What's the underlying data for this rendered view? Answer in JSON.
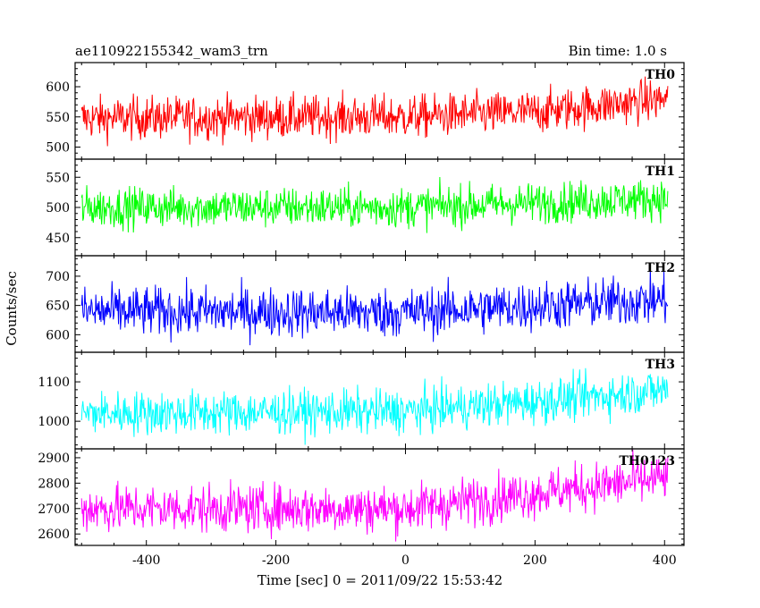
{
  "header": {
    "title": "ae110922155342_wam3_trn",
    "bin_time": "Bin time: 1.0 s"
  },
  "axes": {
    "ylabel": "Counts/sec",
    "xlabel": "Time [sec] 0 = 2011/09/22 15:53:42"
  },
  "chart_data": {
    "type": "line",
    "title": "ae110922155342_wam3_trn",
    "xlabel": "Time [sec] 0 = 2011/09/22 15:53:42",
    "ylabel": "Counts/sec",
    "xlim": [
      -510,
      430
    ],
    "x_ticks": [
      -400,
      -200,
      0,
      200,
      400
    ],
    "x_range": [
      -500,
      405
    ],
    "bin_time_s": 1.0,
    "grid": false,
    "panels": [
      {
        "name": "TH0",
        "color": "#ff0000",
        "ylim": [
          480,
          640
        ],
        "y_ticks": [
          500,
          550,
          600
        ],
        "trend": [
          [
            -500,
            548
          ],
          [
            0,
            550
          ],
          [
            200,
            558
          ],
          [
            405,
            580
          ]
        ],
        "amplitude": 32
      },
      {
        "name": "TH1",
        "color": "#00ff00",
        "ylim": [
          420,
          580
        ],
        "y_ticks": [
          450,
          500,
          550
        ],
        "trend": [
          [
            -500,
            500
          ],
          [
            0,
            500
          ],
          [
            405,
            515
          ]
        ],
        "amplitude": 30
      },
      {
        "name": "TH2",
        "color": "#0000ff",
        "ylim": [
          570,
          735
        ],
        "y_ticks": [
          600,
          650,
          700
        ],
        "trend": [
          [
            -500,
            640
          ],
          [
            0,
            638
          ],
          [
            405,
            660
          ]
        ],
        "amplitude": 38
      },
      {
        "name": "TH3",
        "color": "#00ffff",
        "ylim": [
          930,
          1175
        ],
        "y_ticks": [
          1000,
          1100
        ],
        "trend": [
          [
            -500,
            1020
          ],
          [
            0,
            1025
          ],
          [
            200,
            1050
          ],
          [
            405,
            1080
          ]
        ],
        "amplitude": 50
      },
      {
        "name": "TH0123",
        "color": "#ff00ff",
        "ylim": [
          2555,
          2935
        ],
        "y_ticks": [
          2600,
          2700,
          2800,
          2900
        ],
        "trend": [
          [
            -500,
            2700
          ],
          [
            0,
            2700
          ],
          [
            200,
            2760
          ],
          [
            405,
            2820
          ]
        ],
        "amplitude": 85
      }
    ]
  }
}
